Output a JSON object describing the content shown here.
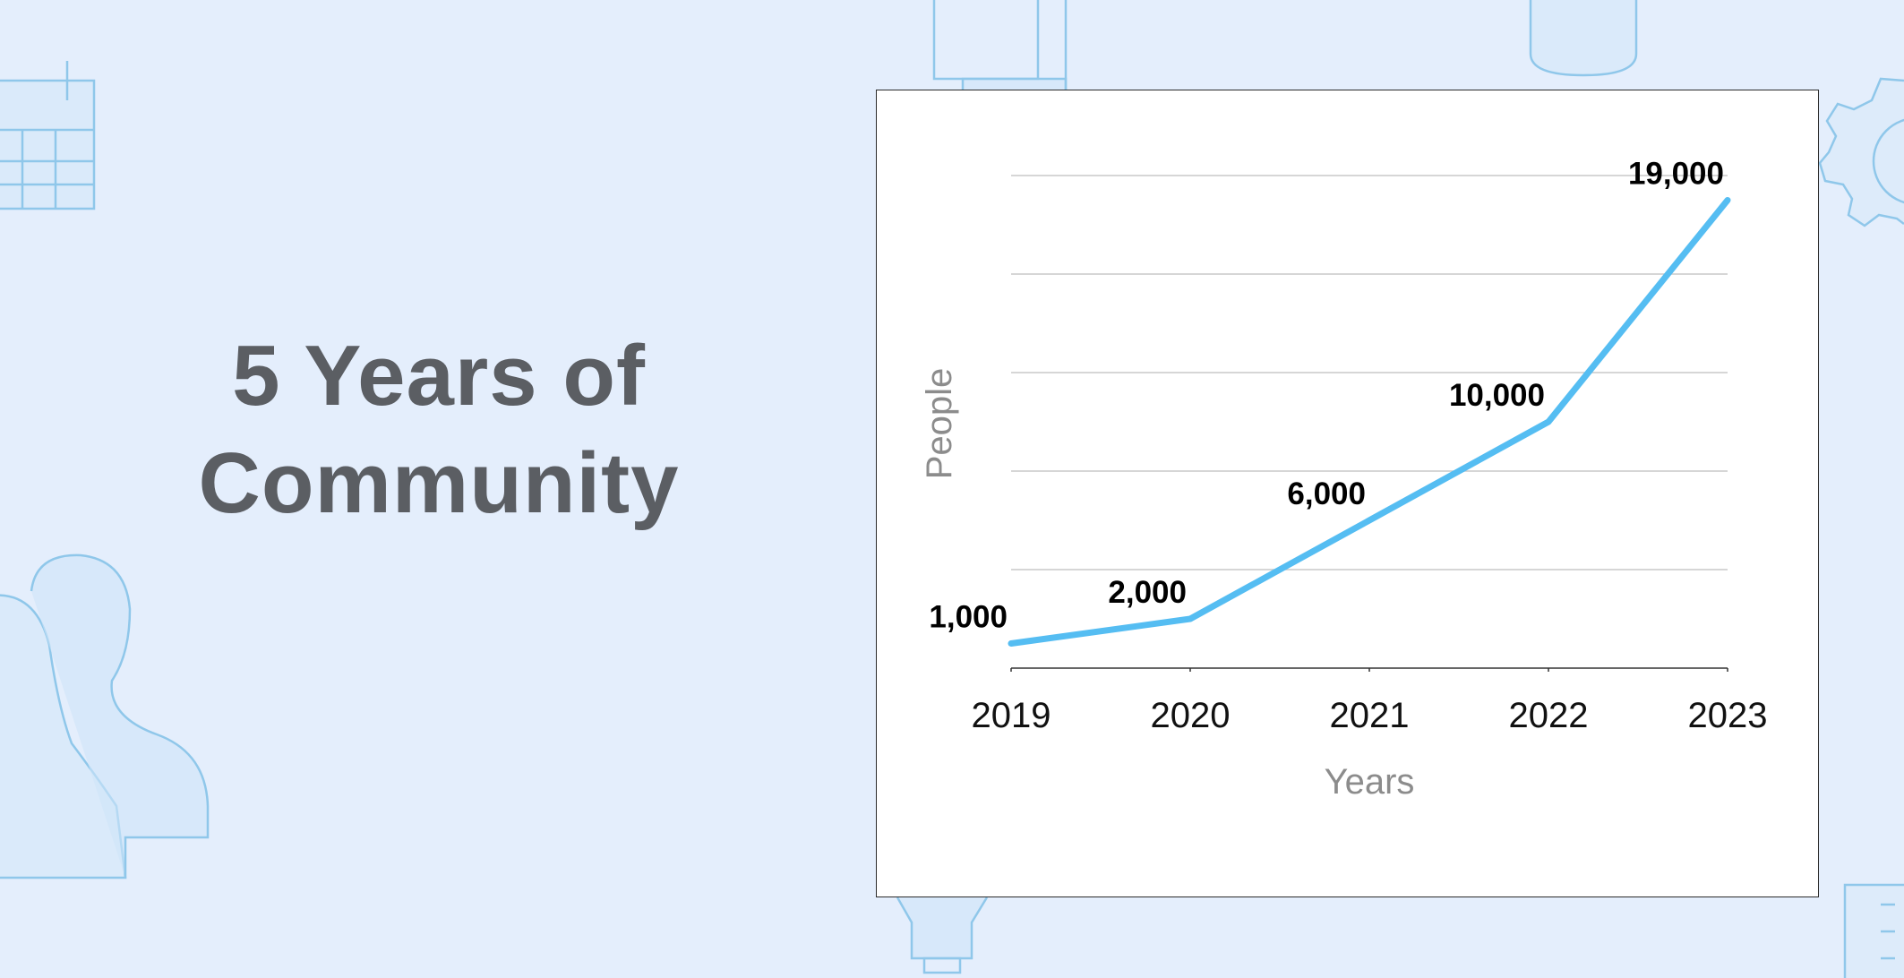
{
  "headline": {
    "line1": "5 Years of",
    "line2": "Community"
  },
  "colors": {
    "background": "#e4eefc",
    "line": "#55bdf2",
    "headline": "#5b5e63",
    "grid": "#c8c8c8",
    "decoration": "#8fc7ea"
  },
  "decorations": [
    "calendar-icon",
    "bottle-icon",
    "cylinder-icon",
    "gear-icon",
    "person-icon",
    "lightbulb-icon",
    "ruler-icon"
  ],
  "chart_data": {
    "type": "line",
    "title": "",
    "xlabel": "Years",
    "ylabel": "People",
    "categories": [
      "2019",
      "2020",
      "2021",
      "2022",
      "2023"
    ],
    "series": [
      {
        "values": [
          1000,
          2000,
          6000,
          10000,
          19000
        ],
        "data_labels": [
          "1,000",
          "2,000",
          "6,000",
          "10,000",
          "19,000"
        ]
      }
    ],
    "ylim": [
      0,
      20000
    ],
    "y_gridlines": [
      4000,
      8000,
      12000,
      16000,
      20000
    ],
    "grid": true,
    "legend": "none"
  }
}
